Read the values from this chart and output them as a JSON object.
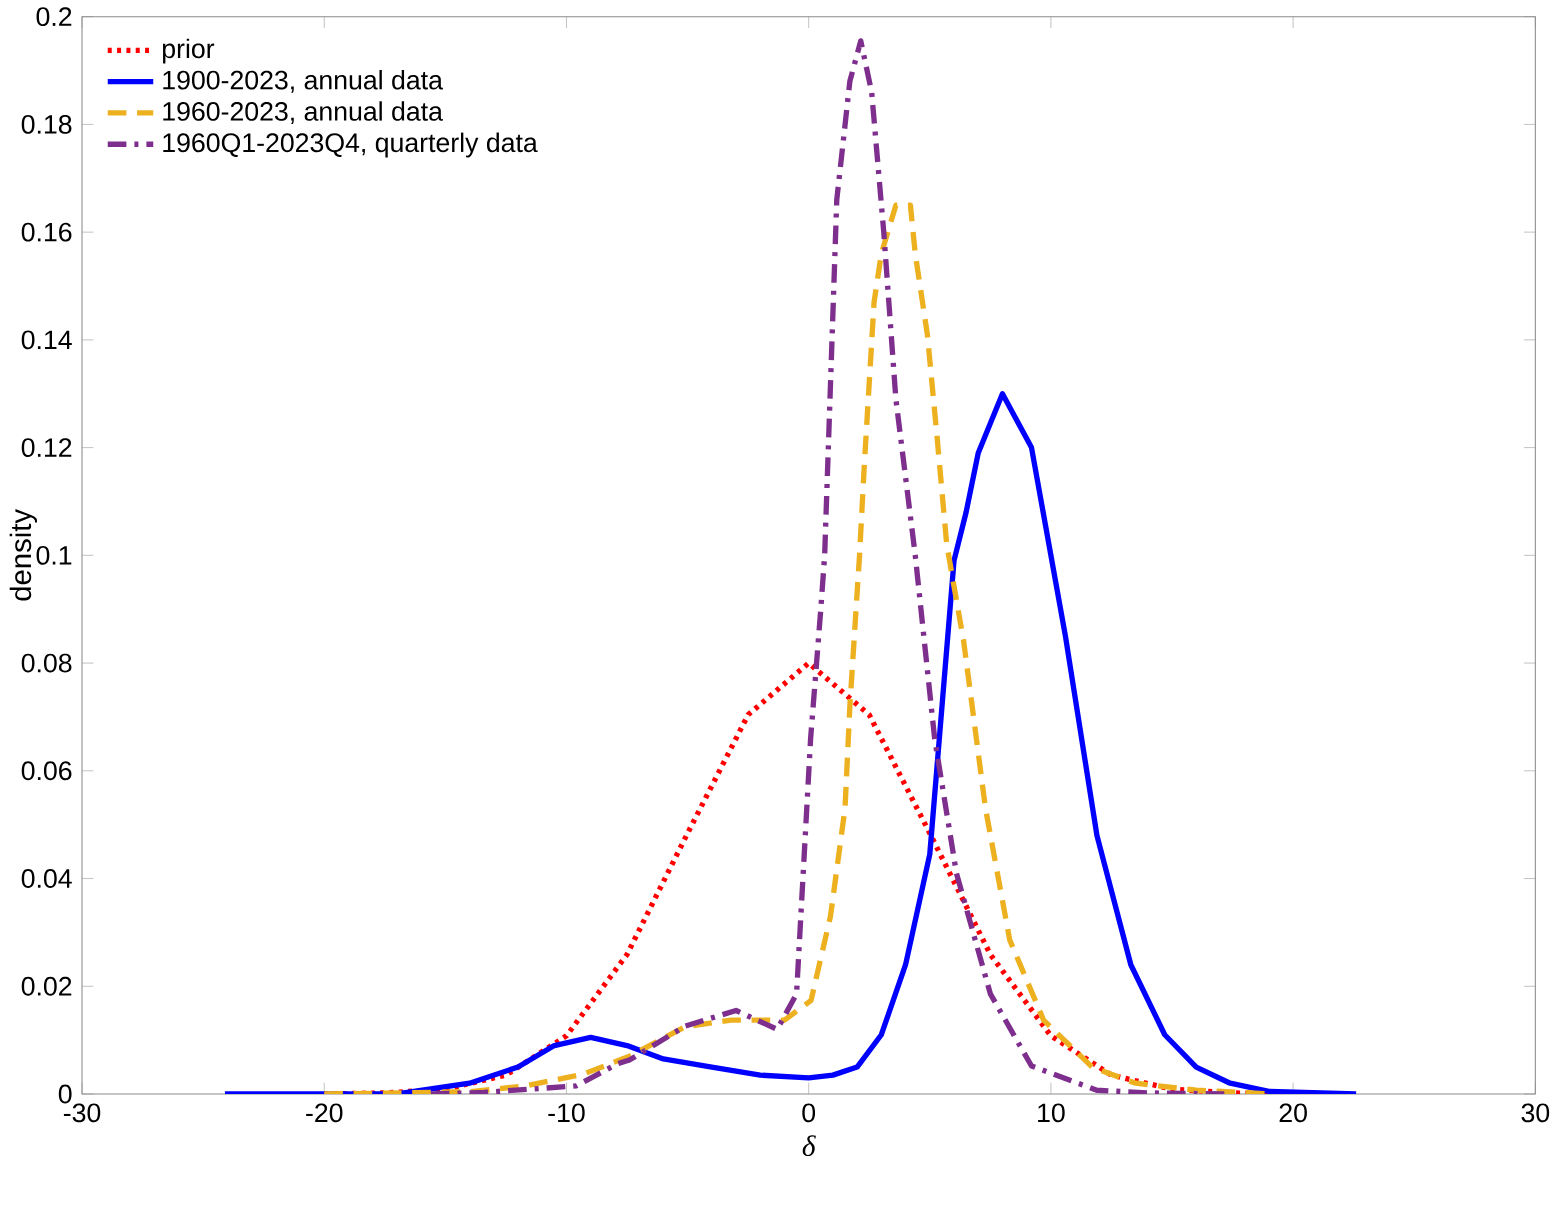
{
  "chart_data": {
    "type": "line",
    "xlabel": "δ",
    "ylabel": "density",
    "xlim": [
      -30,
      30
    ],
    "xticks": [
      -30,
      -20,
      -10,
      0,
      10,
      20,
      30
    ],
    "ylim": [
      0,
      0.2
    ],
    "yticks": [
      0,
      0.02,
      0.04,
      0.06,
      0.08,
      0.1,
      0.12,
      0.14,
      0.16,
      0.18,
      0.2
    ],
    "grid": false,
    "legend": "top left",
    "marker": "none",
    "series": [
      {
        "name": "prior",
        "color": "#ff0000",
        "line_style": "dotted",
        "x": [
          -20,
          -17.5,
          -15,
          -12.5,
          -10,
          -7.5,
          -5,
          -2.5,
          0,
          2.5,
          5,
          7.5,
          10,
          12.5,
          15,
          17.5,
          20
        ],
        "values": [
          0,
          0.0002,
          0.0009,
          0.0035,
          0.0108,
          0.0259,
          0.0484,
          0.0704,
          0.08,
          0.0704,
          0.0484,
          0.0259,
          0.0108,
          0.0035,
          0.0009,
          0.0002,
          0.0
        ]
      },
      {
        "name": "1900-2023, annual data",
        "color": "#0000ff",
        "line_style": "solid",
        "x": [
          -24.1,
          -17,
          -14,
          -12,
          -10.5,
          -9,
          -7.5,
          -6,
          -4,
          -2,
          0,
          1,
          2,
          3,
          4,
          5,
          6,
          6.5,
          7,
          8,
          9.2,
          10.6,
          11.9,
          13.3,
          14.7,
          16,
          17.4,
          19,
          22.6
        ],
        "values": [
          0,
          0,
          0.002,
          0.005,
          0.009,
          0.0105,
          0.009,
          0.0065,
          0.005,
          0.0035,
          0.003,
          0.0035,
          0.005,
          0.011,
          0.024,
          0.0445,
          0.099,
          0.108,
          0.119,
          0.13,
          0.12,
          0.085,
          0.048,
          0.024,
          0.011,
          0.005,
          0.002,
          0.0005,
          0
        ]
      },
      {
        "name": "1960-2023, annual data",
        "color": "#edb120",
        "line_style": "dashed",
        "x": [
          -20,
          -14,
          -11.7,
          -9.3,
          -7.4,
          -5.1,
          -3.2,
          -1,
          0.1,
          0.9,
          1.5,
          1.7,
          2.1,
          2.3,
          2.7,
          3,
          3.6,
          4.2,
          4.4,
          4.9,
          5.3,
          5.7,
          6.4,
          7.3,
          8.3,
          9.7,
          11.7,
          13.5,
          16,
          19.1
        ],
        "values": [
          0,
          0.0004,
          0.0015,
          0.0037,
          0.007,
          0.0125,
          0.0137,
          0.0137,
          0.0174,
          0.033,
          0.053,
          0.072,
          0.1,
          0.117,
          0.147,
          0.156,
          0.165,
          0.165,
          0.156,
          0.141,
          0.122,
          0.102,
          0.084,
          0.053,
          0.0286,
          0.0137,
          0.005,
          0.002,
          0.0007,
          0
        ]
      },
      {
        "name": "1960Q1-2023Q4, quarterly data",
        "color": "#7e2f8e",
        "line_style": "dashdot",
        "x": [
          -15.6,
          -13.4,
          -9.6,
          -7.9,
          -7.4,
          -5.1,
          -3,
          -1.3,
          -0.5,
          0.08,
          0.5,
          0.66,
          1.16,
          1.7,
          2.15,
          2.6,
          3.1,
          3.6,
          4.4,
          5.2,
          6.1,
          7.5,
          9.2,
          11.9,
          14,
          17.4
        ],
        "values": [
          0,
          0.0003,
          0.0015,
          0.0056,
          0.0063,
          0.0126,
          0.0155,
          0.012,
          0.0186,
          0.066,
          0.09,
          0.1,
          0.166,
          0.188,
          0.1955,
          0.186,
          0.16,
          0.129,
          0.1,
          0.066,
          0.041,
          0.0186,
          0.0052,
          0.0007,
          0.0002,
          0
        ]
      }
    ]
  }
}
